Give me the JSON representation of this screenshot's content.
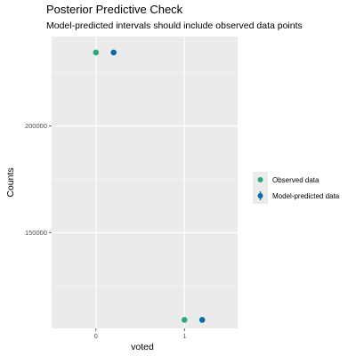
{
  "chart_data": {
    "type": "scatter",
    "title": "Posterior Predictive Check",
    "subtitle": "Model-predicted intervals should include observed data points",
    "xlabel": "voted",
    "ylabel": "Counts",
    "categories": [
      "0",
      "1"
    ],
    "xlim": [
      -0.5,
      1.6
    ],
    "ylim": [
      105000,
      242000
    ],
    "y_ticks": [
      150000,
      200000
    ],
    "y_tick_labels": [
      "150000",
      "200000"
    ],
    "grid": true,
    "legend_position": "right",
    "series": [
      {
        "name": "Observed data",
        "color": "#2ca87f",
        "points": [
          {
            "x": 0,
            "y": 234500
          },
          {
            "x": 1,
            "y": 109000
          }
        ]
      },
      {
        "name": "Model-predicted data",
        "color": "#0a6aad",
        "points": [
          {
            "x": 0.2,
            "y": 234500
          },
          {
            "x": 1.2,
            "y": 109000
          }
        ]
      }
    ]
  }
}
